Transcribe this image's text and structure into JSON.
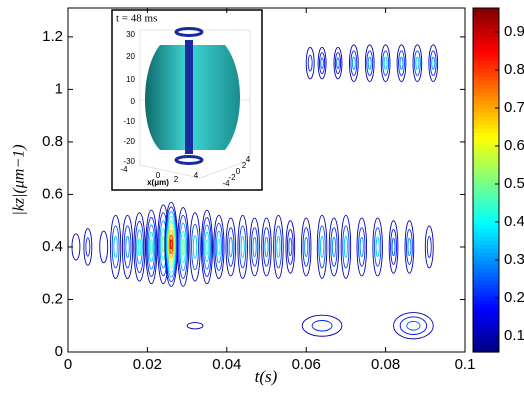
{
  "chart_data": {
    "type": "contour",
    "xlabel": "t(s)",
    "ylabel": "|kz|(μm−1)",
    "xlim": [
      0,
      0.1
    ],
    "ylim": [
      0,
      1.31
    ],
    "xticks": [
      0,
      0.02,
      0.04,
      0.06,
      0.08,
      0.1
    ],
    "yticks": [
      0,
      0.2,
      0.4,
      0.6,
      0.8,
      1,
      1.2
    ],
    "clim": [
      0.058,
      0.963
    ],
    "cticks": [
      0.1,
      0.2,
      0.3,
      0.4,
      0.5,
      0.6,
      0.7,
      0.8,
      0.9
    ],
    "colormap": "jet",
    "blobs": [
      {
        "x": 0.002,
        "kz": 0.4,
        "level": 0.15,
        "dx": 0.001,
        "dkz": 0.05
      },
      {
        "x": 0.005,
        "kz": 0.4,
        "level": 0.2,
        "dx": 0.001,
        "dkz": 0.07
      },
      {
        "x": 0.009,
        "kz": 0.4,
        "level": 0.15,
        "dx": 0.001,
        "dkz": 0.06
      },
      {
        "x": 0.012,
        "kz": 0.4,
        "level": 0.35,
        "dx": 0.0013,
        "dkz": 0.12
      },
      {
        "x": 0.015,
        "kz": 0.4,
        "level": 0.3,
        "dx": 0.0013,
        "dkz": 0.12
      },
      {
        "x": 0.018,
        "kz": 0.4,
        "level": 0.4,
        "dx": 0.0014,
        "dkz": 0.13
      },
      {
        "x": 0.021,
        "kz": 0.4,
        "level": 0.45,
        "dx": 0.0014,
        "dkz": 0.14
      },
      {
        "x": 0.024,
        "kz": 0.41,
        "level": 0.5,
        "dx": 0.0014,
        "dkz": 0.15
      },
      {
        "x": 0.026,
        "kz": 0.41,
        "level": 0.9,
        "dx": 0.0016,
        "dkz": 0.16
      },
      {
        "x": 0.029,
        "kz": 0.4,
        "level": 0.5,
        "dx": 0.0014,
        "dkz": 0.15
      },
      {
        "x": 0.032,
        "kz": 0.4,
        "level": 0.35,
        "dx": 0.0013,
        "dkz": 0.13
      },
      {
        "x": 0.035,
        "kz": 0.4,
        "level": 0.45,
        "dx": 0.0014,
        "dkz": 0.14
      },
      {
        "x": 0.038,
        "kz": 0.4,
        "level": 0.4,
        "dx": 0.0013,
        "dkz": 0.12
      },
      {
        "x": 0.041,
        "kz": 0.4,
        "level": 0.3,
        "dx": 0.0012,
        "dkz": 0.11
      },
      {
        "x": 0.044,
        "kz": 0.4,
        "level": 0.35,
        "dx": 0.0012,
        "dkz": 0.12
      },
      {
        "x": 0.047,
        "kz": 0.4,
        "level": 0.3,
        "dx": 0.0012,
        "dkz": 0.11
      },
      {
        "x": 0.05,
        "kz": 0.4,
        "level": 0.3,
        "dx": 0.0012,
        "dkz": 0.11
      },
      {
        "x": 0.053,
        "kz": 0.4,
        "level": 0.35,
        "dx": 0.0012,
        "dkz": 0.12
      },
      {
        "x": 0.056,
        "kz": 0.4,
        "level": 0.25,
        "dx": 0.0011,
        "dkz": 0.1
      },
      {
        "x": 0.06,
        "kz": 0.4,
        "level": 0.3,
        "dx": 0.0012,
        "dkz": 0.11
      },
      {
        "x": 0.064,
        "kz": 0.4,
        "level": 0.35,
        "dx": 0.0012,
        "dkz": 0.12
      },
      {
        "x": 0.067,
        "kz": 0.4,
        "level": 0.3,
        "dx": 0.0012,
        "dkz": 0.11
      },
      {
        "x": 0.07,
        "kz": 0.4,
        "level": 0.35,
        "dx": 0.0012,
        "dkz": 0.12
      },
      {
        "x": 0.074,
        "kz": 0.4,
        "level": 0.3,
        "dx": 0.0012,
        "dkz": 0.11
      },
      {
        "x": 0.078,
        "kz": 0.4,
        "level": 0.35,
        "dx": 0.0012,
        "dkz": 0.11
      },
      {
        "x": 0.082,
        "kz": 0.4,
        "level": 0.25,
        "dx": 0.0011,
        "dkz": 0.1
      },
      {
        "x": 0.086,
        "kz": 0.4,
        "level": 0.3,
        "dx": 0.0011,
        "dkz": 0.1
      },
      {
        "x": 0.091,
        "kz": 0.4,
        "level": 0.2,
        "dx": 0.001,
        "dkz": 0.08
      },
      {
        "x": 0.061,
        "kz": 1.1,
        "level": 0.2,
        "dx": 0.001,
        "dkz": 0.06
      },
      {
        "x": 0.064,
        "kz": 1.1,
        "level": 0.25,
        "dx": 0.001,
        "dkz": 0.06
      },
      {
        "x": 0.068,
        "kz": 1.1,
        "level": 0.25,
        "dx": 0.001,
        "dkz": 0.06
      },
      {
        "x": 0.072,
        "kz": 1.1,
        "level": 0.3,
        "dx": 0.0011,
        "dkz": 0.07
      },
      {
        "x": 0.076,
        "kz": 1.1,
        "level": 0.3,
        "dx": 0.0011,
        "dkz": 0.07
      },
      {
        "x": 0.08,
        "kz": 1.1,
        "level": 0.35,
        "dx": 0.0011,
        "dkz": 0.07
      },
      {
        "x": 0.084,
        "kz": 1.1,
        "level": 0.3,
        "dx": 0.0011,
        "dkz": 0.07
      },
      {
        "x": 0.088,
        "kz": 1.1,
        "level": 0.35,
        "dx": 0.0011,
        "dkz": 0.07
      },
      {
        "x": 0.092,
        "kz": 1.1,
        "level": 0.3,
        "dx": 0.0011,
        "dkz": 0.07
      },
      {
        "x": 0.032,
        "kz": 0.1,
        "level": 0.15,
        "dx": 0.002,
        "dkz": 0.012
      },
      {
        "x": 0.064,
        "kz": 0.1,
        "level": 0.2,
        "dx": 0.005,
        "dkz": 0.04
      },
      {
        "x": 0.087,
        "kz": 0.1,
        "level": 0.25,
        "dx": 0.005,
        "dkz": 0.05
      }
    ],
    "inset": {
      "title": "t = 48 ms",
      "zticks": [
        30,
        20,
        10,
        0,
        -10,
        -20,
        -30
      ],
      "xticks": [
        -4,
        0,
        2,
        4
      ],
      "xlabel": "x(μm)",
      "yticks": [
        4,
        2,
        0,
        -2,
        -4
      ]
    }
  }
}
